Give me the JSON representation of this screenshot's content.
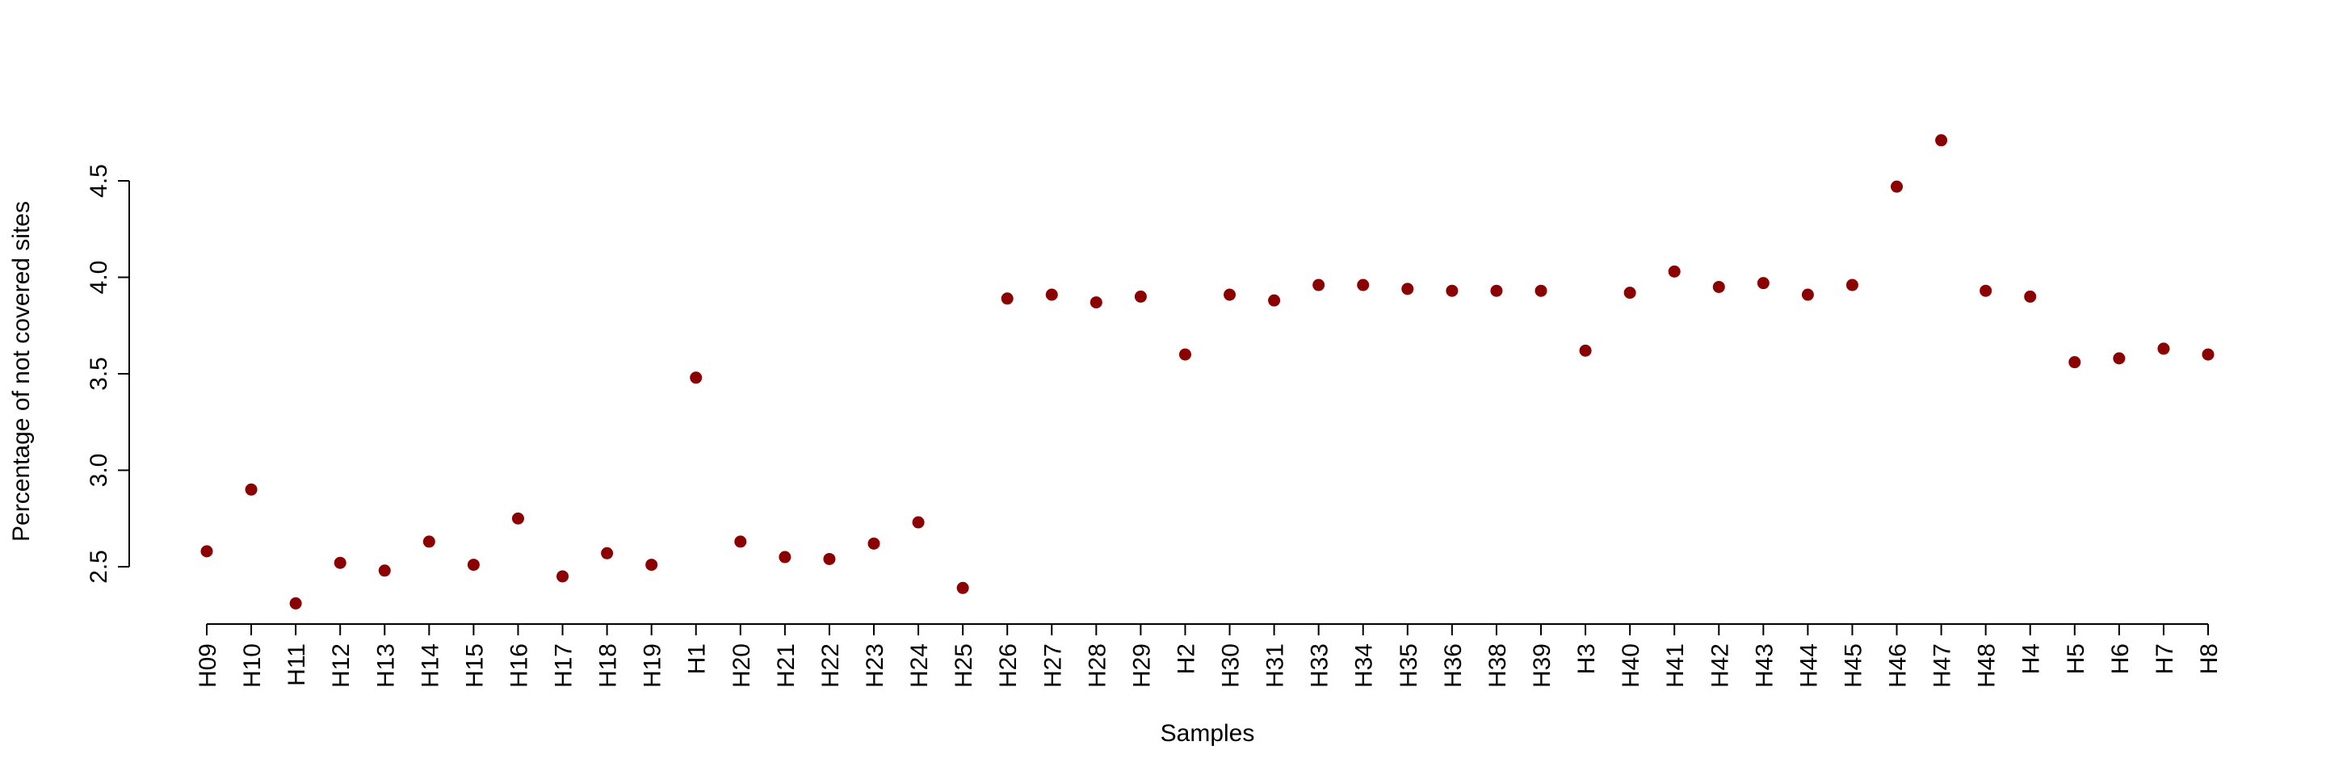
{
  "chart_data": {
    "type": "scatter",
    "title": "",
    "xlabel": "Samples",
    "ylabel": "Percentage of not covered sites",
    "categories": [
      "H09",
      "H10",
      "H11",
      "H12",
      "H13",
      "H14",
      "H15",
      "H16",
      "H17",
      "H18",
      "H19",
      "H1",
      "H20",
      "H21",
      "H22",
      "H23",
      "H24",
      "H25",
      "H26",
      "H27",
      "H28",
      "H29",
      "H2",
      "H30",
      "H31",
      "H33",
      "H34",
      "H35",
      "H36",
      "H38",
      "H39",
      "H3",
      "H40",
      "H41",
      "H42",
      "H43",
      "H44",
      "H45",
      "H46",
      "H47",
      "H48",
      "H4",
      "H5",
      "H6",
      "H7",
      "H8"
    ],
    "values": [
      2.58,
      2.9,
      2.31,
      2.52,
      2.48,
      2.63,
      2.51,
      2.75,
      2.45,
      2.57,
      2.51,
      3.48,
      2.63,
      2.55,
      2.54,
      2.62,
      2.73,
      2.39,
      3.89,
      3.91,
      3.87,
      3.9,
      3.6,
      3.91,
      3.88,
      3.96,
      3.96,
      3.94,
      3.93,
      3.93,
      3.93,
      3.62,
      3.92,
      4.03,
      3.95,
      3.97,
      3.91,
      3.96,
      4.47,
      4.71,
      3.93,
      3.9,
      3.56,
      3.58,
      3.63,
      3.6
    ],
    "y_ticks": [
      "2.5",
      "3.0",
      "3.5",
      "4.0",
      "4.5"
    ],
    "ylim": [
      2.2,
      4.8
    ],
    "grid": false,
    "legend": "none",
    "point_color": "#8b0000"
  }
}
